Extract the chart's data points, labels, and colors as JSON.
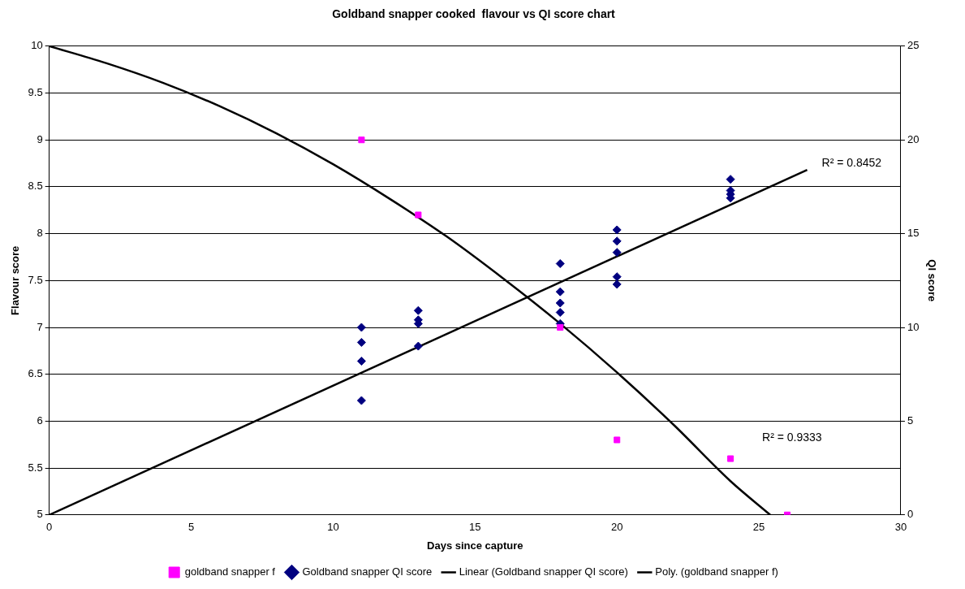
{
  "chart_data": {
    "type": "scatter",
    "title": "Goldband snapper cooked  flavour vs QI score chart",
    "xlabel": "Days since capture",
    "ylabel": "Flavour score",
    "y2label": "QI score",
    "xlim": [
      0,
      30
    ],
    "xticks": [
      0,
      5,
      10,
      15,
      20,
      25,
      30
    ],
    "ylim": [
      5,
      10
    ],
    "yticks": [
      5,
      5.5,
      6,
      6.5,
      7,
      7.5,
      8,
      8.5,
      9,
      9.5,
      10
    ],
    "y2lim": [
      0,
      25
    ],
    "y2ticks": [
      0,
      5,
      10,
      15,
      20,
      25
    ],
    "grid": "y",
    "legend": "bottom",
    "series": [
      {
        "name": "goldband snapper f",
        "marker": "square",
        "color": "#ff00ff",
        "x": [
          11,
          13,
          18,
          20,
          24,
          26
        ],
        "values": [
          9,
          8.2,
          7,
          5.8,
          5.6,
          5
        ]
      },
      {
        "name": "Goldband snapper QI score",
        "marker": "diamond",
        "axis": "y2",
        "color": "#000080",
        "x": [
          11,
          11,
          11,
          11,
          13,
          13,
          13,
          13,
          18,
          18,
          18,
          18,
          18,
          20,
          20,
          20,
          20,
          20,
          24,
          24,
          24,
          24
        ],
        "values": [
          10,
          9.2,
          8.2,
          6.1,
          10.9,
          10.4,
          10.2,
          9,
          13.4,
          11.9,
          11.3,
          10.8,
          10.2,
          15.2,
          14.6,
          14,
          12.7,
          12.3,
          17.9,
          17.3,
          17.1,
          16.9
        ]
      },
      {
        "name": "Linear (Goldband snapper QI score)",
        "type": "line",
        "axis": "y2",
        "color": "#000000",
        "x": [
          0,
          26.7
        ],
        "values": [
          0,
          18.4
        ]
      },
      {
        "name": "Poly. (goldband snapper f)",
        "type": "line",
        "color": "#000000",
        "x": [
          0,
          2,
          4,
          6,
          8,
          10,
          12,
          14,
          16,
          18,
          20,
          22,
          24,
          25.4
        ],
        "values": [
          10,
          9.82,
          9.61,
          9.36,
          9.07,
          8.74,
          8.37,
          7.97,
          7.52,
          7.04,
          6.52,
          5.96,
          5.36,
          5
        ]
      }
    ],
    "annotations": [
      "R² = 0.8452",
      "R² = 0.9333"
    ]
  }
}
